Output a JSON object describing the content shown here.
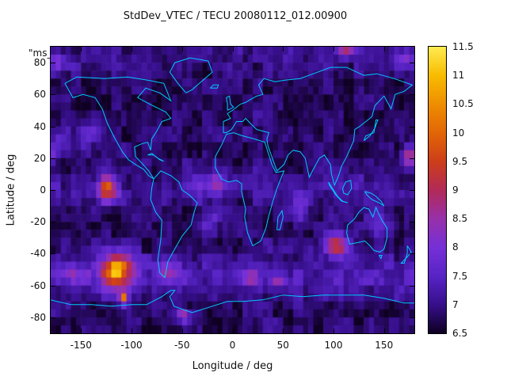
{
  "title": "StdDev_VTEC / TECU 20080112_012.00900",
  "annotation": "\"ms_",
  "axes": {
    "xlabel": "Longitude / deg",
    "ylabel": "Latitude / deg",
    "x_ticks": [
      -150,
      -100,
      -50,
      0,
      50,
      100,
      150
    ],
    "y_ticks": [
      -80,
      -60,
      -40,
      -20,
      0,
      20,
      40,
      60,
      80
    ],
    "x_range": [
      -180,
      180
    ],
    "y_range": [
      -90,
      90
    ]
  },
  "colorbar": {
    "range": [
      6.5,
      11.5
    ],
    "ticks": [
      6.5,
      7,
      7.5,
      8,
      8.5,
      9,
      9.5,
      10,
      10.5,
      11,
      11.5
    ],
    "stops": [
      {
        "v": 6.5,
        "c": [
          15,
          0,
          35
        ]
      },
      {
        "v": 7.0,
        "c": [
          55,
          15,
          140
        ]
      },
      {
        "v": 7.5,
        "c": [
          88,
          36,
          198
        ]
      },
      {
        "v": 8.0,
        "c": [
          118,
          48,
          215
        ]
      },
      {
        "v": 8.5,
        "c": [
          152,
          48,
          170
        ]
      },
      {
        "v": 9.0,
        "c": [
          178,
          42,
          88
        ]
      },
      {
        "v": 9.5,
        "c": [
          205,
          62,
          26
        ]
      },
      {
        "v": 10.0,
        "c": [
          226,
          102,
          6
        ]
      },
      {
        "v": 10.5,
        "c": [
          238,
          142,
          0
        ]
      },
      {
        "v": 11.0,
        "c": [
          248,
          188,
          0
        ]
      },
      {
        "v": 11.5,
        "c": [
          255,
          235,
          80
        ]
      }
    ]
  },
  "chart_data": {
    "type": "heatmap",
    "units": "TECU",
    "title": "StdDev_VTEC / TECU 20080112_012.00900",
    "x_range": [
      -180,
      180
    ],
    "y_range": [
      -90,
      90
    ],
    "value_range": [
      6.5,
      11.5
    ],
    "grid_resolution_deg": 5,
    "base_value": 6.82,
    "noise": {
      "coarse": 0.28,
      "fine": 0.18
    },
    "latitude_bands": [
      {
        "lat": -55,
        "sigma": 13,
        "amp": 0.5
      },
      {
        "lat": 2,
        "sigma": 9,
        "amp": 0.3
      },
      {
        "lat": 85,
        "sigma": 8,
        "amp": 0.2
      }
    ],
    "hotspots": [
      {
        "lon": -114,
        "lat": -51,
        "sx": 18,
        "sy": 11,
        "amp": 3.0
      },
      {
        "lon": -115,
        "lat": -50,
        "sx": 6,
        "sy": 5,
        "amp": 1.4
      },
      {
        "lon": -108,
        "lat": -68,
        "sx": 4,
        "sy": 4,
        "amp": 2.8
      },
      {
        "lon": -124,
        "lat": 1,
        "sx": 10,
        "sy": 8,
        "amp": 2.6
      },
      {
        "lon": 103,
        "lat": -35,
        "sx": 12,
        "sy": 7,
        "amp": 2.6
      },
      {
        "lon": 18,
        "lat": -55,
        "sx": 8,
        "sy": 4,
        "amp": 2.0
      },
      {
        "lon": 45,
        "lat": -57,
        "sx": 7,
        "sy": 4,
        "amp": 1.7
      },
      {
        "lon": -48,
        "lat": -79,
        "sx": 6,
        "sy": 4,
        "amp": 2.4
      },
      {
        "lon": 175,
        "lat": 21,
        "sx": 7,
        "sy": 6,
        "amp": 2.2
      },
      {
        "lon": 113,
        "lat": 87,
        "sx": 9,
        "sy": 4,
        "amp": 2.0
      },
      {
        "lon": -18,
        "lat": 4,
        "sx": 16,
        "sy": 9,
        "amp": 1.1
      },
      {
        "lon": -24,
        "lat": -22,
        "sx": 10,
        "sy": 8,
        "amp": 1.0
      },
      {
        "lon": -142,
        "lat": 36,
        "sx": 11,
        "sy": 8,
        "amp": 0.9
      },
      {
        "lon": 68,
        "lat": -12,
        "sx": 10,
        "sy": 8,
        "amp": 0.9
      },
      {
        "lon": 145,
        "lat": -20,
        "sx": 14,
        "sy": 9,
        "amp": 0.8
      },
      {
        "lon": -62,
        "lat": -52,
        "sx": 12,
        "sy": 6,
        "amp": 1.1
      },
      {
        "lon": -160,
        "lat": -53,
        "sx": 14,
        "sy": 6,
        "amp": 1.0
      },
      {
        "lon": -172,
        "lat": 30,
        "sx": 10,
        "sy": 8,
        "amp": 0.7
      },
      {
        "lon": -170,
        "lat": 80,
        "sx": 12,
        "sy": 5,
        "amp": 0.9
      },
      {
        "lon": 170,
        "lat": 82,
        "sx": 10,
        "sy": 5,
        "amp": 0.9
      }
    ],
    "coastline_color": "#00c8ff",
    "coastlines": {
      "north_america": [
        [
          -166,
          67
        ],
        [
          -158,
          58
        ],
        [
          -148,
          60
        ],
        [
          -136,
          58
        ],
        [
          -129,
          51
        ],
        [
          -124,
          42
        ],
        [
          -117,
          33
        ],
        [
          -109,
          24
        ],
        [
          -103,
          19
        ],
        [
          -96,
          16
        ],
        [
          -88,
          13
        ],
        [
          -83,
          9
        ],
        [
          -78,
          7
        ],
        [
          -83,
          12
        ],
        [
          -90,
          17
        ],
        [
          -96,
          21
        ],
        [
          -97,
          27
        ],
        [
          -90,
          29
        ],
        [
          -84,
          30
        ],
        [
          -81,
          25
        ],
        [
          -80,
          32
        ],
        [
          -75,
          37
        ],
        [
          -70,
          43
        ],
        [
          -61,
          45
        ],
        [
          -66,
          49
        ],
        [
          -79,
          53
        ],
        [
          -94,
          58
        ],
        [
          -86,
          64
        ],
        [
          -72,
          61
        ],
        [
          -61,
          56
        ],
        [
          -68,
          67
        ],
        [
          -84,
          69
        ],
        [
          -104,
          71
        ],
        [
          -126,
          70
        ],
        [
          -154,
          71
        ],
        [
          -166,
          67
        ]
      ],
      "greenland": [
        [
          -46,
          61
        ],
        [
          -54,
          67
        ],
        [
          -62,
          74
        ],
        [
          -57,
          80
        ],
        [
          -42,
          83
        ],
        [
          -24,
          81
        ],
        [
          -20,
          74
        ],
        [
          -31,
          68
        ],
        [
          -40,
          63
        ],
        [
          -46,
          61
        ]
      ],
      "south_america": [
        [
          -78,
          7
        ],
        [
          -80,
          1
        ],
        [
          -81,
          -6
        ],
        [
          -76,
          -14
        ],
        [
          -70,
          -19
        ],
        [
          -71,
          -31
        ],
        [
          -74,
          -44
        ],
        [
          -72,
          -52
        ],
        [
          -67,
          -55
        ],
        [
          -64,
          -45
        ],
        [
          -58,
          -38
        ],
        [
          -50,
          -29
        ],
        [
          -41,
          -22
        ],
        [
          -38,
          -14
        ],
        [
          -35,
          -8
        ],
        [
          -43,
          -3
        ],
        [
          -50,
          0
        ],
        [
          -53,
          5
        ],
        [
          -61,
          9
        ],
        [
          -71,
          12
        ],
        [
          -78,
          7
        ]
      ],
      "cuba_hispaniola": [
        [
          -84,
          22
        ],
        [
          -78,
          22
        ],
        [
          -72,
          19
        ],
        [
          -68,
          18
        ],
        [
          -74,
          20
        ],
        [
          -80,
          23
        ],
        [
          -84,
          22
        ]
      ],
      "africa": [
        [
          -6,
          35
        ],
        [
          -11,
          28
        ],
        [
          -17,
          21
        ],
        [
          -17,
          14
        ],
        [
          -11,
          7
        ],
        [
          -4,
          5
        ],
        [
          4,
          6
        ],
        [
          9,
          4
        ],
        [
          9,
          -1
        ],
        [
          13,
          -12
        ],
        [
          12,
          -17
        ],
        [
          15,
          -27
        ],
        [
          20,
          -35
        ],
        [
          28,
          -32
        ],
        [
          33,
          -24
        ],
        [
          36,
          -16
        ],
        [
          40,
          -7
        ],
        [
          44,
          1
        ],
        [
          51,
          12
        ],
        [
          43,
          11
        ],
        [
          39,
          16
        ],
        [
          35,
          24
        ],
        [
          32,
          30
        ],
        [
          22,
          32
        ],
        [
          10,
          34
        ],
        [
          1,
          36
        ],
        [
          -6,
          35
        ]
      ],
      "madagascar": [
        [
          44,
          -25
        ],
        [
          45,
          -17
        ],
        [
          49,
          -13
        ],
        [
          50,
          -17
        ],
        [
          47,
          -25
        ],
        [
          44,
          -25
        ]
      ],
      "eurasia": [
        [
          -9,
          36
        ],
        [
          -9,
          43
        ],
        [
          -2,
          45
        ],
        [
          -5,
          48
        ],
        [
          0,
          50
        ],
        [
          8,
          54
        ],
        [
          13,
          55
        ],
        [
          18,
          57
        ],
        [
          24,
          59
        ],
        [
          30,
          60
        ],
        [
          26,
          66
        ],
        [
          31,
          70
        ],
        [
          42,
          68
        ],
        [
          52,
          69
        ],
        [
          67,
          70
        ],
        [
          80,
          73
        ],
        [
          97,
          77
        ],
        [
          113,
          77
        ],
        [
          130,
          72
        ],
        [
          143,
          73
        ],
        [
          160,
          70
        ],
        [
          178,
          66
        ],
        [
          170,
          62
        ],
        [
          161,
          60
        ],
        [
          157,
          51
        ],
        [
          150,
          59
        ],
        [
          141,
          53
        ],
        [
          138,
          46
        ],
        [
          130,
          42
        ],
        [
          126,
          40
        ],
        [
          121,
          38
        ],
        [
          120,
          31
        ],
        [
          113,
          21
        ],
        [
          108,
          15
        ],
        [
          105,
          9
        ],
        [
          101,
          3
        ],
        [
          98,
          10
        ],
        [
          97,
          16
        ],
        [
          91,
          22
        ],
        [
          86,
          20
        ],
        [
          80,
          13
        ],
        [
          76,
          8
        ],
        [
          72,
          20
        ],
        [
          67,
          24
        ],
        [
          60,
          25
        ],
        [
          55,
          22
        ],
        [
          51,
          16
        ],
        [
          44,
          12
        ],
        [
          40,
          19
        ],
        [
          35,
          28
        ],
        [
          34,
          32
        ],
        [
          36,
          36
        ],
        [
          30,
          37
        ],
        [
          24,
          38
        ],
        [
          19,
          41
        ],
        [
          13,
          45
        ],
        [
          10,
          43
        ],
        [
          4,
          43
        ],
        [
          -1,
          38
        ],
        [
          -6,
          36
        ],
        [
          -9,
          36
        ]
      ],
      "british_isles": [
        [
          -5,
          50
        ],
        [
          -5,
          54
        ],
        [
          -6,
          58
        ],
        [
          -3,
          59
        ],
        [
          -2,
          54
        ],
        [
          1,
          52
        ],
        [
          -5,
          50
        ]
      ],
      "iceland": [
        [
          -22,
          64
        ],
        [
          -19,
          66
        ],
        [
          -14,
          66
        ],
        [
          -15,
          64
        ],
        [
          -22,
          64
        ]
      ],
      "japan": [
        [
          130,
          31
        ],
        [
          132,
          34
        ],
        [
          136,
          35
        ],
        [
          140,
          36
        ],
        [
          141,
          40
        ],
        [
          142,
          44
        ],
        [
          144,
          44
        ],
        [
          141,
          39
        ],
        [
          136,
          34
        ],
        [
          130,
          31
        ]
      ],
      "sumatra_java": [
        [
          95,
          5
        ],
        [
          100,
          0
        ],
        [
          104,
          -4
        ],
        [
          109,
          -7
        ],
        [
          114,
          -8
        ],
        [
          108,
          -7
        ],
        [
          102,
          -3
        ],
        [
          96,
          3
        ],
        [
          95,
          5
        ]
      ],
      "borneo": [
        [
          109,
          1
        ],
        [
          112,
          5
        ],
        [
          117,
          6
        ],
        [
          118,
          1
        ],
        [
          114,
          -3
        ],
        [
          110,
          -2
        ],
        [
          109,
          1
        ]
      ],
      "new_guinea": [
        [
          131,
          -1
        ],
        [
          137,
          -2
        ],
        [
          142,
          -4
        ],
        [
          147,
          -7
        ],
        [
          150,
          -10
        ],
        [
          145,
          -8
        ],
        [
          138,
          -6
        ],
        [
          133,
          -3
        ],
        [
          131,
          -1
        ]
      ],
      "australia": [
        [
          114,
          -22
        ],
        [
          113,
          -27
        ],
        [
          116,
          -34
        ],
        [
          124,
          -33
        ],
        [
          131,
          -32
        ],
        [
          136,
          -35
        ],
        [
          140,
          -38
        ],
        [
          146,
          -39
        ],
        [
          150,
          -37
        ],
        [
          153,
          -30
        ],
        [
          153,
          -24
        ],
        [
          148,
          -19
        ],
        [
          144,
          -14
        ],
        [
          142,
          -11
        ],
        [
          139,
          -17
        ],
        [
          135,
          -12
        ],
        [
          130,
          -11
        ],
        [
          125,
          -14
        ],
        [
          121,
          -18
        ],
        [
          114,
          -22
        ]
      ],
      "tasmania": [
        [
          145,
          -41
        ],
        [
          148,
          -41
        ],
        [
          147,
          -43
        ],
        [
          145,
          -41
        ]
      ],
      "new_zealand": [
        [
          173,
          -35
        ],
        [
          176,
          -38
        ],
        [
          177,
          -39
        ],
        [
          173,
          -42
        ],
        [
          170,
          -44
        ],
        [
          167,
          -46
        ],
        [
          170,
          -46
        ],
        [
          173,
          -40
        ],
        [
          173,
          -35
        ]
      ],
      "antarctica": [
        [
          -180,
          -69
        ],
        [
          -160,
          -72
        ],
        [
          -140,
          -72
        ],
        [
          -120,
          -73
        ],
        [
          -100,
          -72
        ],
        [
          -85,
          -72
        ],
        [
          -70,
          -67
        ],
        [
          -61,
          -63
        ],
        [
          -57,
          -63
        ],
        [
          -62,
          -67
        ],
        [
          -58,
          -73
        ],
        [
          -40,
          -77
        ],
        [
          -20,
          -73
        ],
        [
          -5,
          -70
        ],
        [
          10,
          -70
        ],
        [
          30,
          -69
        ],
        [
          50,
          -66
        ],
        [
          70,
          -67
        ],
        [
          90,
          -66
        ],
        [
          110,
          -66
        ],
        [
          130,
          -66
        ],
        [
          150,
          -68
        ],
        [
          170,
          -71
        ],
        [
          180,
          -71
        ]
      ]
    }
  }
}
